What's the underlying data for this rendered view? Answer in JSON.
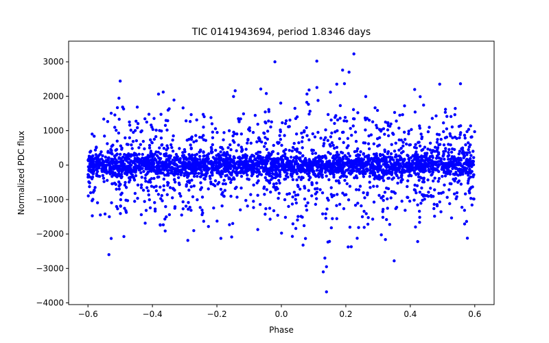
{
  "chart_data": {
    "type": "scatter",
    "title": "TIC 0141943694, period 1.8346 days",
    "xlabel": "Phase",
    "ylabel": "Normalized PDC flux",
    "xlim": [
      -0.66,
      0.66
    ],
    "ylim": [
      -4050,
      3600
    ],
    "xticks": [
      -0.6,
      -0.4,
      -0.2,
      0.0,
      0.2,
      0.4,
      0.6
    ],
    "xtick_labels": [
      "−0.6",
      "−0.4",
      "−0.2",
      "0.0",
      "0.2",
      "0.4",
      "0.6"
    ],
    "yticks": [
      -4000,
      -3000,
      -2000,
      -1000,
      0,
      1000,
      2000,
      3000
    ],
    "ytick_labels": [
      "−4000",
      "−3000",
      "−2000",
      "−1000",
      "0",
      "1000",
      "2000",
      "3000"
    ],
    "grid": false,
    "series": [
      {
        "name": "flux",
        "color": "#0000ff",
        "marker": "circle",
        "x_range": [
          -0.6,
          0.6
        ],
        "n_points": 3400,
        "core_std": 170,
        "wide_std": 850,
        "wide_fraction": 0.42,
        "sample_seed": 141943694,
        "outliers": [
          {
            "x": -0.02,
            "y": 3000
          },
          {
            "x": 0.11,
            "y": 3020
          },
          {
            "x": 0.225,
            "y": 3230
          },
          {
            "x": 0.19,
            "y": 2760
          },
          {
            "x": 0.21,
            "y": 2700
          },
          {
            "x": 0.13,
            "y": -3100
          },
          {
            "x": 0.14,
            "y": -2950
          },
          {
            "x": 0.135,
            "y": -2700
          },
          {
            "x": 0.14,
            "y": -3680
          },
          {
            "x": -0.535,
            "y": -2600
          },
          {
            "x": 0.35,
            "y": -2780
          },
          {
            "x": -0.5,
            "y": 2440
          }
        ]
      }
    ]
  }
}
